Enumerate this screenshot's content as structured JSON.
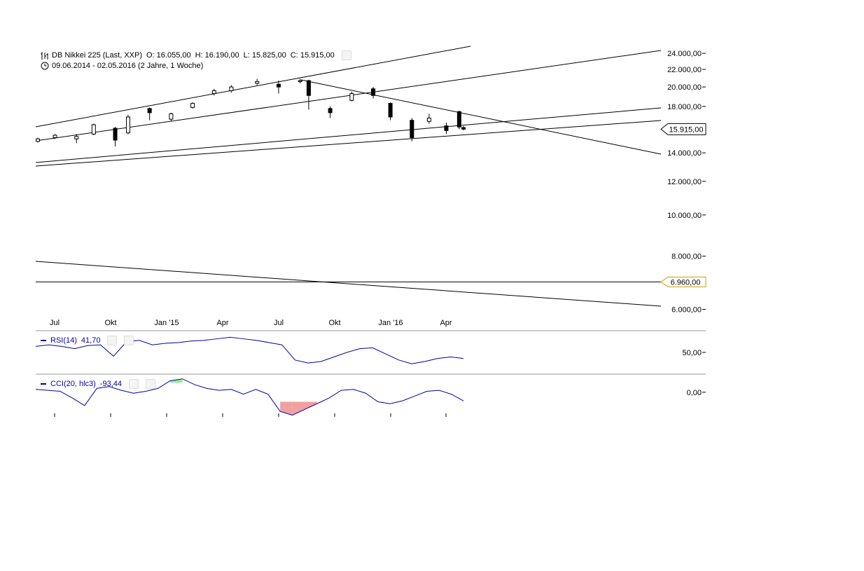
{
  "header": {
    "instrument": "DB Nikkei 225 (Last, XXP)",
    "open": "O: 16.055,00",
    "high": "H: 16.190,00",
    "low": "L: 15.825,00",
    "close": "C: 15.915,00",
    "range": "09.06.2014 - 02.05.2016 (2 Jahre, 1 Woche)"
  },
  "indicators": {
    "rsi_label": "RSI(14)",
    "rsi_value": "41,70",
    "cci_label": "CCI(20, hlc3)",
    "cci_value": "-93,44"
  },
  "colors": {
    "indicator_line": "#0000aa",
    "candle": "#000000",
    "last_price_marker": "#000000",
    "level_marker": "#c8a000",
    "cci_positive_fill": "#90ee90",
    "cci_negative_fill": "#f0a0a0"
  },
  "chart_data": [
    {
      "type": "candlestick",
      "title": "DB Nikkei 225 (Last, XXP)",
      "x_tick_labels": [
        "Jul",
        "Okt",
        "Jan '15",
        "Apr",
        "Jul",
        "Okt",
        "Jan '16",
        "Apr"
      ],
      "y_tick_labels": [
        "24.000,00",
        "22.000,00",
        "20.000,00",
        "18.000,00",
        "14.000,00",
        "12.000,00",
        "10.000,00",
        "8.000,00",
        "6.000,00"
      ],
      "y_ticks": [
        24000,
        22000,
        20000,
        18000,
        14000,
        12000,
        10000,
        8000,
        6000
      ],
      "y_scale": "log",
      "ylim": [
        5700,
        26000
      ],
      "last_price": 15915,
      "last_price_label": "15.915,00",
      "horizontal_level": 6960,
      "horizontal_level_label": "6.960,00",
      "weekly_ohlc_approx": [
        {
          "date": "2014-06-09",
          "o": 14900,
          "h": 15200,
          "l": 14800,
          "c": 15100
        },
        {
          "date": "2014-07-07",
          "o": 15200,
          "h": 15500,
          "l": 15100,
          "c": 15400
        },
        {
          "date": "2014-08-11",
          "o": 15100,
          "h": 15500,
          "l": 14750,
          "c": 15300
        },
        {
          "date": "2014-09-08",
          "o": 15500,
          "h": 16400,
          "l": 15400,
          "c": 16300
        },
        {
          "date": "2014-10-13",
          "o": 16000,
          "h": 16100,
          "l": 14500,
          "c": 15000
        },
        {
          "date": "2014-11-03",
          "o": 15600,
          "h": 17200,
          "l": 15500,
          "c": 17000
        },
        {
          "date": "2014-12-08",
          "o": 17800,
          "h": 17900,
          "l": 16700,
          "c": 17400
        },
        {
          "date": "2015-01-12",
          "o": 16800,
          "h": 17400,
          "l": 16600,
          "c": 17300
        },
        {
          "date": "2015-02-16",
          "o": 17900,
          "h": 18400,
          "l": 17800,
          "c": 18300
        },
        {
          "date": "2015-03-23",
          "o": 19300,
          "h": 19800,
          "l": 19100,
          "c": 19600
        },
        {
          "date": "2015-04-20",
          "o": 19600,
          "h": 20200,
          "l": 19400,
          "c": 20000
        },
        {
          "date": "2015-06-01",
          "o": 20400,
          "h": 20900,
          "l": 20200,
          "c": 20600
        },
        {
          "date": "2015-07-06",
          "o": 20300,
          "h": 20700,
          "l": 19300,
          "c": 20000
        },
        {
          "date": "2015-08-10",
          "o": 20600,
          "h": 20900,
          "l": 20400,
          "c": 20700
        },
        {
          "date": "2015-08-24",
          "o": 20700,
          "h": 20800,
          "l": 17700,
          "c": 19100
        },
        {
          "date": "2015-09-28",
          "o": 17800,
          "h": 18000,
          "l": 16900,
          "c": 17400
        },
        {
          "date": "2015-11-02",
          "o": 18600,
          "h": 19500,
          "l": 18500,
          "c": 19300
        },
        {
          "date": "2015-12-07",
          "o": 19800,
          "h": 20000,
          "l": 18800,
          "c": 19100
        },
        {
          "date": "2016-01-04",
          "o": 18300,
          "h": 18400,
          "l": 16700,
          "c": 17000
        },
        {
          "date": "2016-02-08",
          "o": 16700,
          "h": 16900,
          "l": 14900,
          "c": 15200
        },
        {
          "date": "2016-03-07",
          "o": 16600,
          "h": 17300,
          "l": 16400,
          "c": 16900
        },
        {
          "date": "2016-04-04",
          "o": 16200,
          "h": 16500,
          "l": 15500,
          "c": 15800
        },
        {
          "date": "2016-04-25",
          "o": 17500,
          "h": 17600,
          "l": 15900,
          "c": 16100
        },
        {
          "date": "2016-05-02",
          "o": 16055,
          "h": 16190,
          "l": 15825,
          "c": 15915
        }
      ]
    },
    {
      "type": "line",
      "title": "RSI(14)",
      "y_tick_labels": [
        "50,00"
      ],
      "last_value": 41.7,
      "values_approx": [
        58,
        60,
        58,
        55,
        59,
        60,
        45,
        64,
        66,
        60,
        62,
        63,
        65,
        66,
        68,
        70,
        68,
        66,
        63,
        60,
        40,
        36,
        38,
        44,
        50,
        55,
        56,
        48,
        40,
        35,
        38,
        42,
        44,
        42
      ]
    },
    {
      "type": "line",
      "title": "CCI(20, hlc3)",
      "y_tick_labels": [
        "0,00"
      ],
      "last_value": -93.44,
      "values_approx": [
        30,
        20,
        10,
        -60,
        -140,
        40,
        60,
        20,
        -10,
        10,
        40,
        120,
        140,
        80,
        40,
        20,
        30,
        -20,
        30,
        -20,
        -200,
        -240,
        -180,
        -120,
        -60,
        20,
        30,
        -10,
        -100,
        -120,
        -90,
        -40,
        10,
        20,
        -20,
        -90
      ]
    }
  ]
}
